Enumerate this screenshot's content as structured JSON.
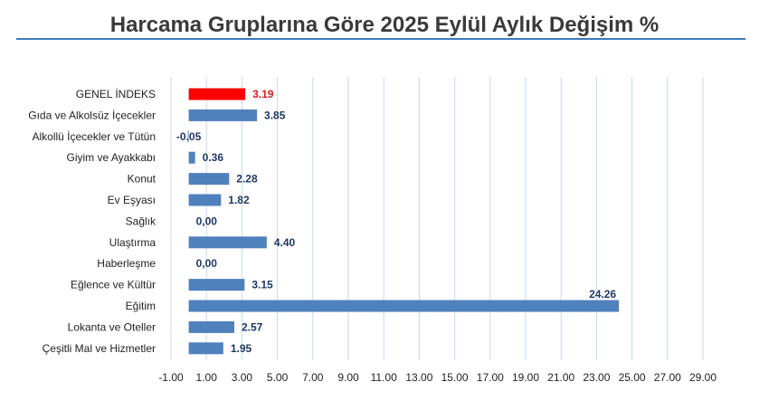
{
  "chart_data": {
    "type": "bar",
    "orientation": "horizontal",
    "title": "Harcama Gruplarına Göre 2025 Eylül Aylık Değişim %",
    "categories": [
      "GENEL İNDEKS",
      "Gıda ve Alkolsüz İçecekler",
      "Alkollü İçecekler ve Tütün",
      "Giyim ve Ayakkabı",
      "Konut",
      "Ev Eşyası",
      "Sağlık",
      "Ulaştırma",
      "Haberleşme",
      "Eğlence ve Kültür",
      "Eğitim",
      "Lokanta ve Oteller",
      "Çeşitli Mal ve Hizmetler"
    ],
    "values": [
      3.19,
      3.85,
      -0.05,
      0.36,
      2.28,
      1.82,
      0,
      4.4,
      0,
      3.15,
      24.26,
      2.57,
      1.95
    ],
    "value_labels": [
      "3.19",
      "3.85",
      "-0.05",
      "0.36",
      "2.28",
      "1.82",
      "0,00",
      "4.40",
      "0,00",
      "3.15",
      "24.26",
      "2.57",
      "1.95"
    ],
    "xlim": [
      -1,
      29
    ],
    "xticks": [
      "-1.00",
      "1.00",
      "3.00",
      "5.00",
      "7.00",
      "9.00",
      "11.00",
      "13.00",
      "15.00",
      "17.00",
      "19.00",
      "21.00",
      "23.00",
      "25.00",
      "27.00",
      "29.00"
    ],
    "grid": "vertical",
    "colors": {
      "bar": "#4f81bd",
      "highlight": "#ff0000",
      "highlight_label": "#e0191c",
      "grid": "#c6d9f1",
      "title_rule": "#3d79b8"
    }
  }
}
